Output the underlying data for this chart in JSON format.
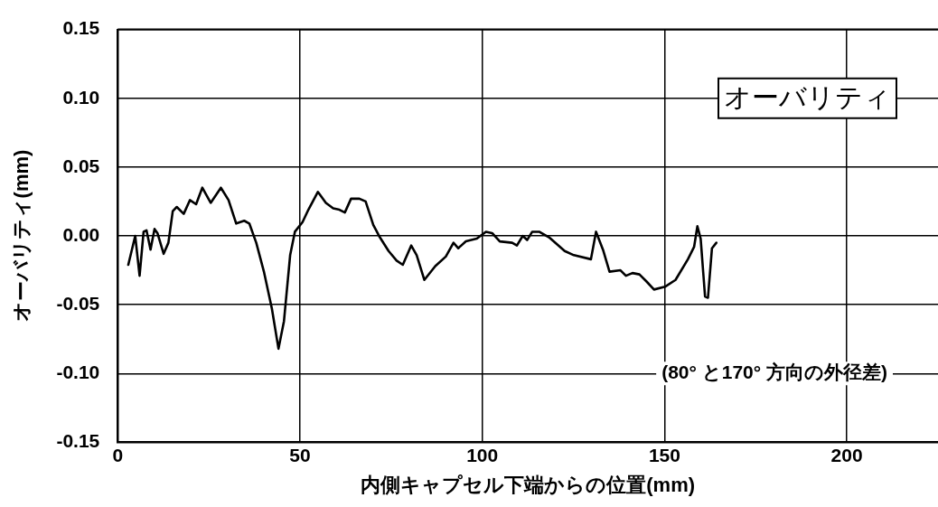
{
  "chart_data": {
    "type": "line",
    "xlabel": "内側キャプセル下端からの位置(mm)",
    "ylabel": "オーバリティ(mm)",
    "annotations": [
      "オーバリティ",
      "(80° と170° 方向の外径差)"
    ],
    "xlim": [
      0,
      225
    ],
    "xticks": [
      0,
      50,
      100,
      150,
      200
    ],
    "ylim": [
      -0.15,
      0.15
    ],
    "yticks": [
      {
        "value": -0.15,
        "label": "-0.15"
      },
      {
        "value": -0.1,
        "label": "-0.10"
      },
      {
        "value": -0.05,
        "label": "-0.05"
      },
      {
        "value": 0,
        "label": "0.00"
      },
      {
        "value": 0.05,
        "label": "0.05"
      },
      {
        "value": 0.1,
        "label": "0.10"
      },
      {
        "value": 0.15,
        "label": "0.15"
      }
    ],
    "grid": true,
    "marker": "none",
    "line_style": "solid",
    "series": [
      {
        "color": "#000000",
        "x": [
          2.9,
          4.8,
          6.0,
          7.1,
          7.9,
          9.0,
          10.1,
          10.9,
          12.6,
          13.9,
          15.1,
          16.2,
          18.1,
          19.8,
          21.5,
          23.2,
          25.5,
          28.3,
          30.4,
          32.5,
          34.7,
          36.1,
          38.0,
          40.1,
          42.3,
          44.1,
          45.6,
          47.3,
          48.6,
          50.7,
          52.3,
          54.9,
          57.1,
          59.1,
          60.8,
          62.3,
          64.0,
          66.3,
          68.0,
          70.1,
          71.9,
          74.3,
          76.5,
          78.2,
          80.5,
          82.0,
          84.1,
          87.1,
          90.0,
          92.1,
          93.4,
          95.5,
          98.5,
          101.0,
          102.7,
          104.8,
          108.2,
          109.5,
          111.1,
          112.3,
          113.7,
          115.6,
          118.3,
          122.6,
          125.1,
          129.8,
          131.2,
          133.1,
          134.9,
          137.9,
          139.4,
          141.2,
          143.1,
          145.0,
          147.1,
          150.1,
          153.0,
          156.4,
          158.1,
          159.0,
          159.9,
          161.1,
          161.9,
          163.0,
          164.2
        ],
        "values": [
          -0.021,
          0.0,
          -0.029,
          0.003,
          0.004,
          -0.01,
          0.005,
          0.002,
          -0.013,
          -0.005,
          0.018,
          0.021,
          0.016,
          0.026,
          0.023,
          0.035,
          0.024,
          0.035,
          0.026,
          0.009,
          0.011,
          0.009,
          -0.005,
          -0.026,
          -0.053,
          -0.082,
          -0.062,
          -0.014,
          0.003,
          0.01,
          0.019,
          0.032,
          0.024,
          0.02,
          0.019,
          0.017,
          0.027,
          0.027,
          0.025,
          0.008,
          -0.001,
          -0.011,
          -0.018,
          -0.021,
          -0.007,
          -0.014,
          -0.032,
          -0.022,
          -0.015,
          -0.005,
          -0.009,
          -0.004,
          -0.002,
          0.003,
          0.002,
          -0.004,
          -0.005,
          -0.007,
          0.0,
          -0.003,
          0.003,
          0.003,
          -0.001,
          -0.011,
          -0.014,
          -0.017,
          0.003,
          -0.01,
          -0.026,
          -0.025,
          -0.029,
          -0.027,
          -0.028,
          -0.033,
          -0.039,
          -0.037,
          -0.032,
          -0.017,
          -0.008,
          0.007,
          -0.002,
          -0.044,
          -0.045,
          -0.009,
          -0.005
        ]
      }
    ]
  }
}
